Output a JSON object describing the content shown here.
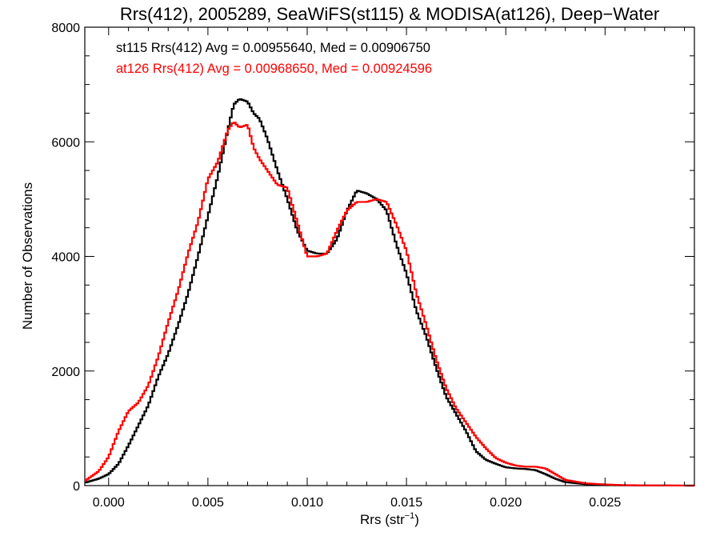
{
  "chart_data": {
    "type": "line",
    "title": "Rrs(412), 2005289, SeaWiFS(st115) & MODISA(at126), Deep−Water",
    "xlabel": "Rrs (str",
    "xlabel_sup": "−1",
    "xlabel_suffix": ")",
    "ylabel": "Number of Observations",
    "xlim": [
      -0.0012,
      0.0295
    ],
    "ylim": [
      0,
      8000
    ],
    "xticks": [
      0.0,
      0.005,
      0.01,
      0.015,
      0.02,
      0.025
    ],
    "xtick_labels": [
      "0.000",
      "0.005",
      "0.010",
      "0.015",
      "0.020",
      "0.025"
    ],
    "yticks": [
      0,
      2000,
      4000,
      6000,
      8000
    ],
    "ytick_labels": [
      "0",
      "2000",
      "4000",
      "6000",
      "8000"
    ],
    "annotations": [
      {
        "text": "st115 Rrs(412) Avg = 0.00955640, Med = 0.00906750",
        "color": "#000000"
      },
      {
        "text": "at126 Rrs(412) Avg = 0.00968650, Med = 0.00924596",
        "color": "#ff0000"
      }
    ],
    "series": [
      {
        "color": "#000000",
        "x": [
          -0.0012,
          -0.0005,
          0.0,
          0.0005,
          0.001,
          0.0015,
          0.002,
          0.0025,
          0.003,
          0.0035,
          0.004,
          0.0045,
          0.005,
          0.0055,
          0.006,
          0.0063,
          0.0066,
          0.007,
          0.0073,
          0.0076,
          0.008,
          0.0085,
          0.009,
          0.0095,
          0.01,
          0.0105,
          0.011,
          0.0115,
          0.012,
          0.0125,
          0.013,
          0.0135,
          0.014,
          0.0145,
          0.015,
          0.0155,
          0.016,
          0.0165,
          0.017,
          0.0175,
          0.018,
          0.0185,
          0.019,
          0.0195,
          0.02,
          0.0205,
          0.021,
          0.0215,
          0.022,
          0.0225,
          0.023,
          0.024,
          0.025,
          0.026,
          0.0275,
          0.0295
        ],
        "y": [
          50,
          120,
          200,
          380,
          700,
          1050,
          1400,
          1900,
          2300,
          2800,
          3350,
          4000,
          4700,
          5400,
          6200,
          6650,
          6750,
          6700,
          6500,
          6400,
          6050,
          5500,
          5000,
          4450,
          4100,
          4050,
          4050,
          4300,
          4800,
          5150,
          5100,
          5000,
          4800,
          4200,
          3700,
          3050,
          2600,
          2050,
          1550,
          1250,
          950,
          600,
          450,
          380,
          320,
          300,
          290,
          270,
          200,
          120,
          60,
          25,
          10,
          5,
          2,
          0
        ]
      },
      {
        "color": "#ff0000",
        "x": [
          -0.0012,
          -0.0005,
          0.0,
          0.0005,
          0.001,
          0.0015,
          0.002,
          0.0025,
          0.003,
          0.0035,
          0.004,
          0.0045,
          0.005,
          0.0055,
          0.006,
          0.0063,
          0.0066,
          0.007,
          0.0073,
          0.0076,
          0.008,
          0.0085,
          0.009,
          0.0095,
          0.01,
          0.0105,
          0.011,
          0.0115,
          0.012,
          0.0125,
          0.013,
          0.0135,
          0.014,
          0.0145,
          0.015,
          0.0155,
          0.016,
          0.0165,
          0.017,
          0.0175,
          0.018,
          0.0185,
          0.019,
          0.0195,
          0.02,
          0.0205,
          0.021,
          0.0215,
          0.022,
          0.0225,
          0.023,
          0.024,
          0.025,
          0.026,
          0.0275,
          0.0295
        ],
        "y": [
          80,
          250,
          500,
          950,
          1300,
          1450,
          1750,
          2250,
          2850,
          3400,
          4050,
          4600,
          5350,
          5650,
          6200,
          6350,
          6250,
          6300,
          5900,
          5700,
          5500,
          5250,
          5200,
          4600,
          4000,
          4000,
          4050,
          4450,
          4800,
          4950,
          4950,
          5000,
          4950,
          4550,
          4100,
          3350,
          2800,
          2200,
          1700,
          1350,
          1100,
          850,
          650,
          480,
          400,
          350,
          330,
          330,
          300,
          200,
          100,
          40,
          20,
          8,
          3,
          0
        ]
      }
    ]
  }
}
